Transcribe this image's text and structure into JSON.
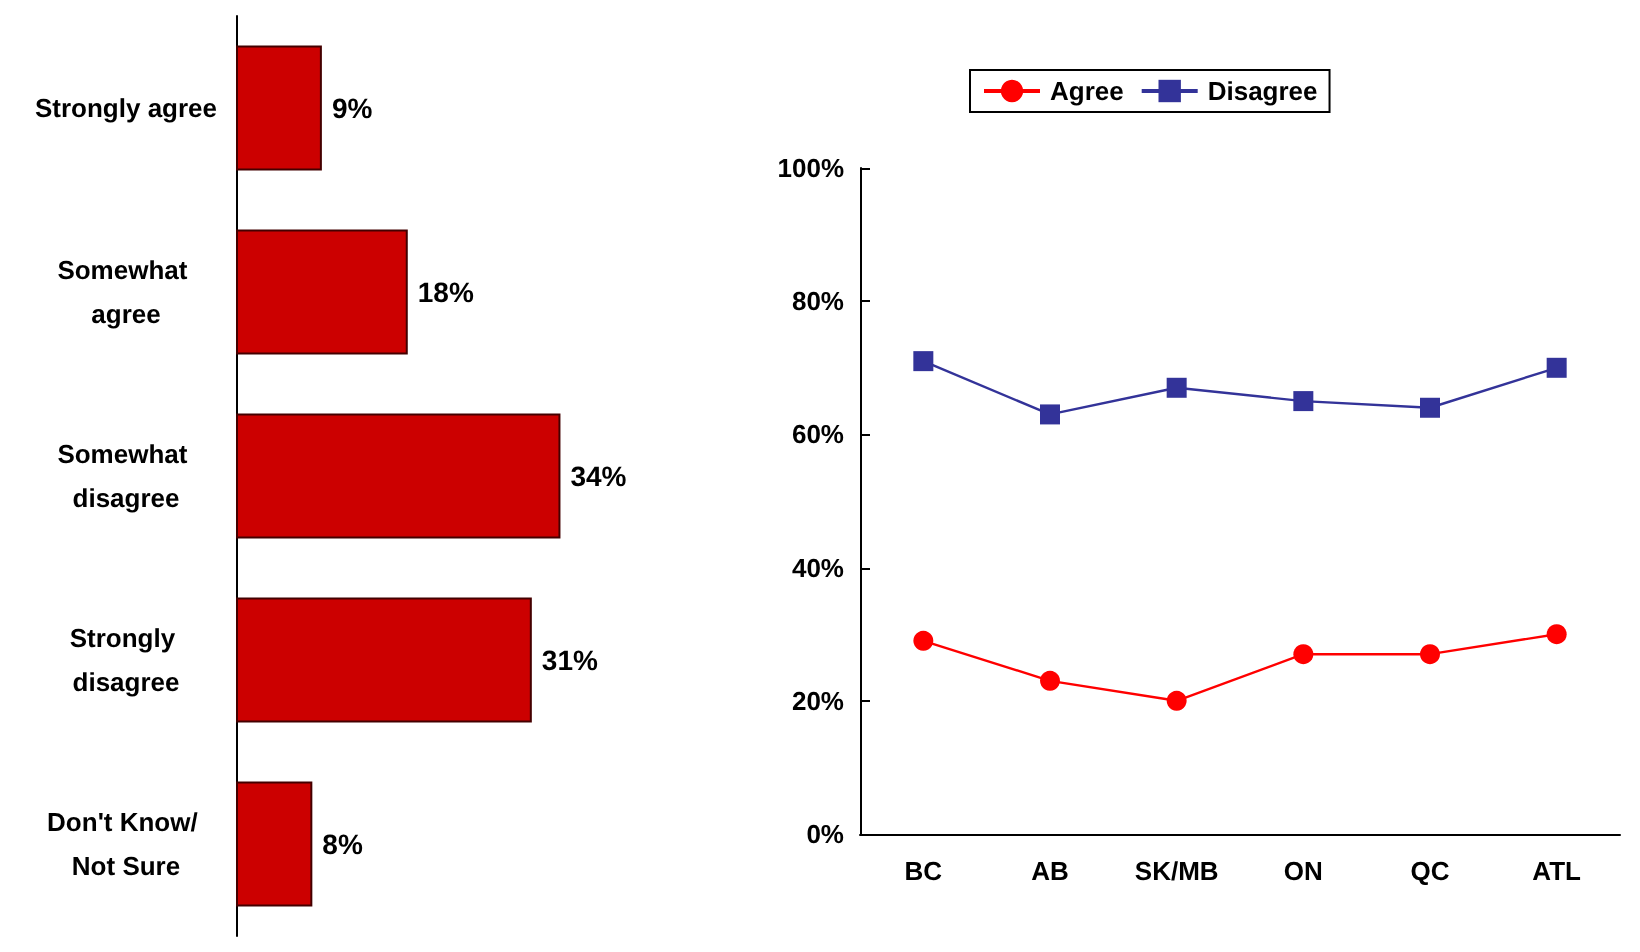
{
  "chart_data": [
    {
      "type": "bar",
      "orientation": "horizontal",
      "categories": [
        "Strongly agree",
        "Somewhat agree",
        "Somewhat disagree",
        "Strongly disagree",
        "Don't Know/ Not Sure"
      ],
      "values": [
        9,
        18,
        34,
        31,
        8
      ],
      "color": "#cc0000",
      "value_labels": [
        "9%",
        "18%",
        "34%",
        "31%",
        "8%"
      ],
      "grid": false
    },
    {
      "type": "line",
      "categories": [
        "BC",
        "AB",
        "SK/MB",
        "ON",
        "QC",
        "ATL"
      ],
      "series": [
        {
          "name": "Agree",
          "color": "#ff0000",
          "marker": "circle",
          "values": [
            29,
            23,
            20,
            27,
            27,
            30
          ]
        },
        {
          "name": "Disagree",
          "color": "#333399",
          "marker": "square",
          "values": [
            71,
            63,
            67,
            65,
            64,
            70
          ]
        }
      ],
      "ylim": [
        0,
        100
      ],
      "yticks": [
        {
          "value": 0,
          "label": "0%"
        },
        {
          "value": 20,
          "label": "20%"
        },
        {
          "value": 40,
          "label": "40%"
        },
        {
          "value": 60,
          "label": "60%"
        },
        {
          "value": 80,
          "label": "80%"
        },
        {
          "value": 100,
          "label": "100%"
        }
      ],
      "legend": "top",
      "grid": false,
      "line_style": "solid"
    }
  ]
}
